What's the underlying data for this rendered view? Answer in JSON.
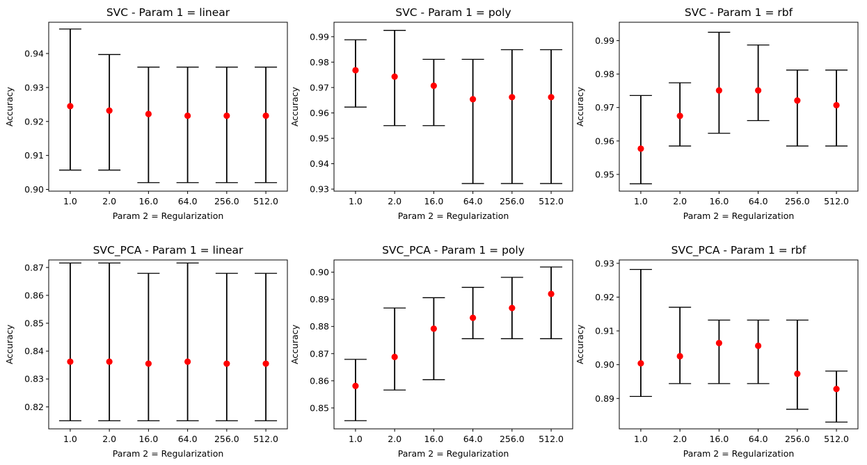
{
  "colors": {
    "point": "#ff0000",
    "errorbar": "#000000",
    "axes": "#000000",
    "background": "#ffffff"
  },
  "chart_data": [
    {
      "type": "scatter",
      "title": "SVC - Param 1 = linear",
      "xlabel": "Param 2 = Regularization",
      "ylabel": "Accuracy",
      "categories": [
        "1.0",
        "2.0",
        "16.0",
        "64.0",
        "256.0",
        "512.0"
      ],
      "values": [
        0.9245,
        0.9232,
        0.9222,
        0.9217,
        0.9217,
        0.9217
      ],
      "err_low": [
        0.9057,
        0.9057,
        0.902,
        0.902,
        0.902,
        0.902
      ],
      "err_high": [
        0.9472,
        0.9397,
        0.936,
        0.936,
        0.936,
        0.936
      ],
      "ylim": [
        0.8995,
        0.9492
      ],
      "yticks": [
        "0.90",
        "0.91",
        "0.92",
        "0.93",
        "0.94"
      ],
      "grid": false
    },
    {
      "type": "scatter",
      "title": "SVC - Param 1 = poly",
      "xlabel": "Param 2 = Regularization",
      "ylabel": "Accuracy",
      "categories": [
        "1.0",
        "2.0",
        "16.0",
        "64.0",
        "256.0",
        "512.0"
      ],
      "values": [
        0.9768,
        0.9743,
        0.9707,
        0.9654,
        0.9662,
        0.9662
      ],
      "err_low": [
        0.9623,
        0.955,
        0.955,
        0.9322,
        0.9322,
        0.9322
      ],
      "err_high": [
        0.9888,
        0.9925,
        0.9811,
        0.9811,
        0.9849,
        0.9849
      ],
      "ylim": [
        0.9292,
        0.9957
      ],
      "yticks": [
        "0.93",
        "0.94",
        "0.95",
        "0.96",
        "0.97",
        "0.98",
        "0.99"
      ],
      "grid": false
    },
    {
      "type": "scatter",
      "title": "SVC - Param 1 = rbf",
      "xlabel": "Param 2 = Regularization",
      "ylabel": "Accuracy",
      "categories": [
        "1.0",
        "2.0",
        "16.0",
        "64.0",
        "256.0",
        "512.0"
      ],
      "values": [
        0.9577,
        0.9675,
        0.9751,
        0.9751,
        0.9721,
        0.9707
      ],
      "err_low": [
        0.9472,
        0.9585,
        0.9623,
        0.9661,
        0.9585,
        0.9585
      ],
      "err_high": [
        0.9736,
        0.9774,
        0.9925,
        0.9887,
        0.9812,
        0.9812
      ],
      "ylim": [
        0.945,
        0.9955
      ],
      "yticks": [
        "0.95",
        "0.96",
        "0.97",
        "0.98",
        "0.99"
      ],
      "grid": false
    },
    {
      "type": "scatter",
      "title": "SVC_PCA - Param 1 = linear",
      "xlabel": "Param 2 = Regularization",
      "ylabel": "Accuracy",
      "categories": [
        "1.0",
        "2.0",
        "16.0",
        "64.0",
        "256.0",
        "512.0"
      ],
      "values": [
        0.8362,
        0.8362,
        0.8355,
        0.8362,
        0.8355,
        0.8355
      ],
      "err_low": [
        0.815,
        0.815,
        0.815,
        0.815,
        0.815,
        0.815
      ],
      "err_high": [
        0.8716,
        0.8716,
        0.8679,
        0.8716,
        0.8679,
        0.8679
      ],
      "ylim": [
        0.8121,
        0.8727
      ],
      "yticks": [
        "0.82",
        "0.83",
        "0.84",
        "0.85",
        "0.86",
        "0.87"
      ],
      "grid": false
    },
    {
      "type": "scatter",
      "title": "SVC_PCA - Param 1 = poly",
      "xlabel": "Param 2 = Regularization",
      "ylabel": "Accuracy",
      "categories": [
        "1.0",
        "2.0",
        "16.0",
        "64.0",
        "256.0",
        "512.0"
      ],
      "values": [
        0.8581,
        0.8688,
        0.8792,
        0.8832,
        0.8868,
        0.892
      ],
      "err_low": [
        0.8453,
        0.8566,
        0.8604,
        0.8755,
        0.8755,
        0.8755
      ],
      "err_high": [
        0.8679,
        0.8868,
        0.8906,
        0.8944,
        0.8981,
        0.9019
      ],
      "ylim": [
        0.8423,
        0.9045
      ],
      "yticks": [
        "0.85",
        "0.86",
        "0.87",
        "0.88",
        "0.89",
        "0.90"
      ],
      "grid": false
    },
    {
      "type": "scatter",
      "title": "SVC_PCA - Param 1 = rbf",
      "xlabel": "Param 2 = Regularization",
      "ylabel": "Accuracy",
      "categories": [
        "1.0",
        "2.0",
        "16.0",
        "64.0",
        "256.0",
        "512.0"
      ],
      "values": [
        0.9004,
        0.9025,
        0.9064,
        0.9056,
        0.8973,
        0.8928
      ],
      "err_low": [
        0.8906,
        0.8944,
        0.8944,
        0.8944,
        0.8868,
        0.883
      ],
      "err_high": [
        0.9282,
        0.917,
        0.9132,
        0.9132,
        0.9132,
        0.8981
      ],
      "ylim": [
        0.881,
        0.931
      ],
      "yticks": [
        "0.89",
        "0.90",
        "0.91",
        "0.92",
        "0.93"
      ],
      "grid": false
    }
  ]
}
